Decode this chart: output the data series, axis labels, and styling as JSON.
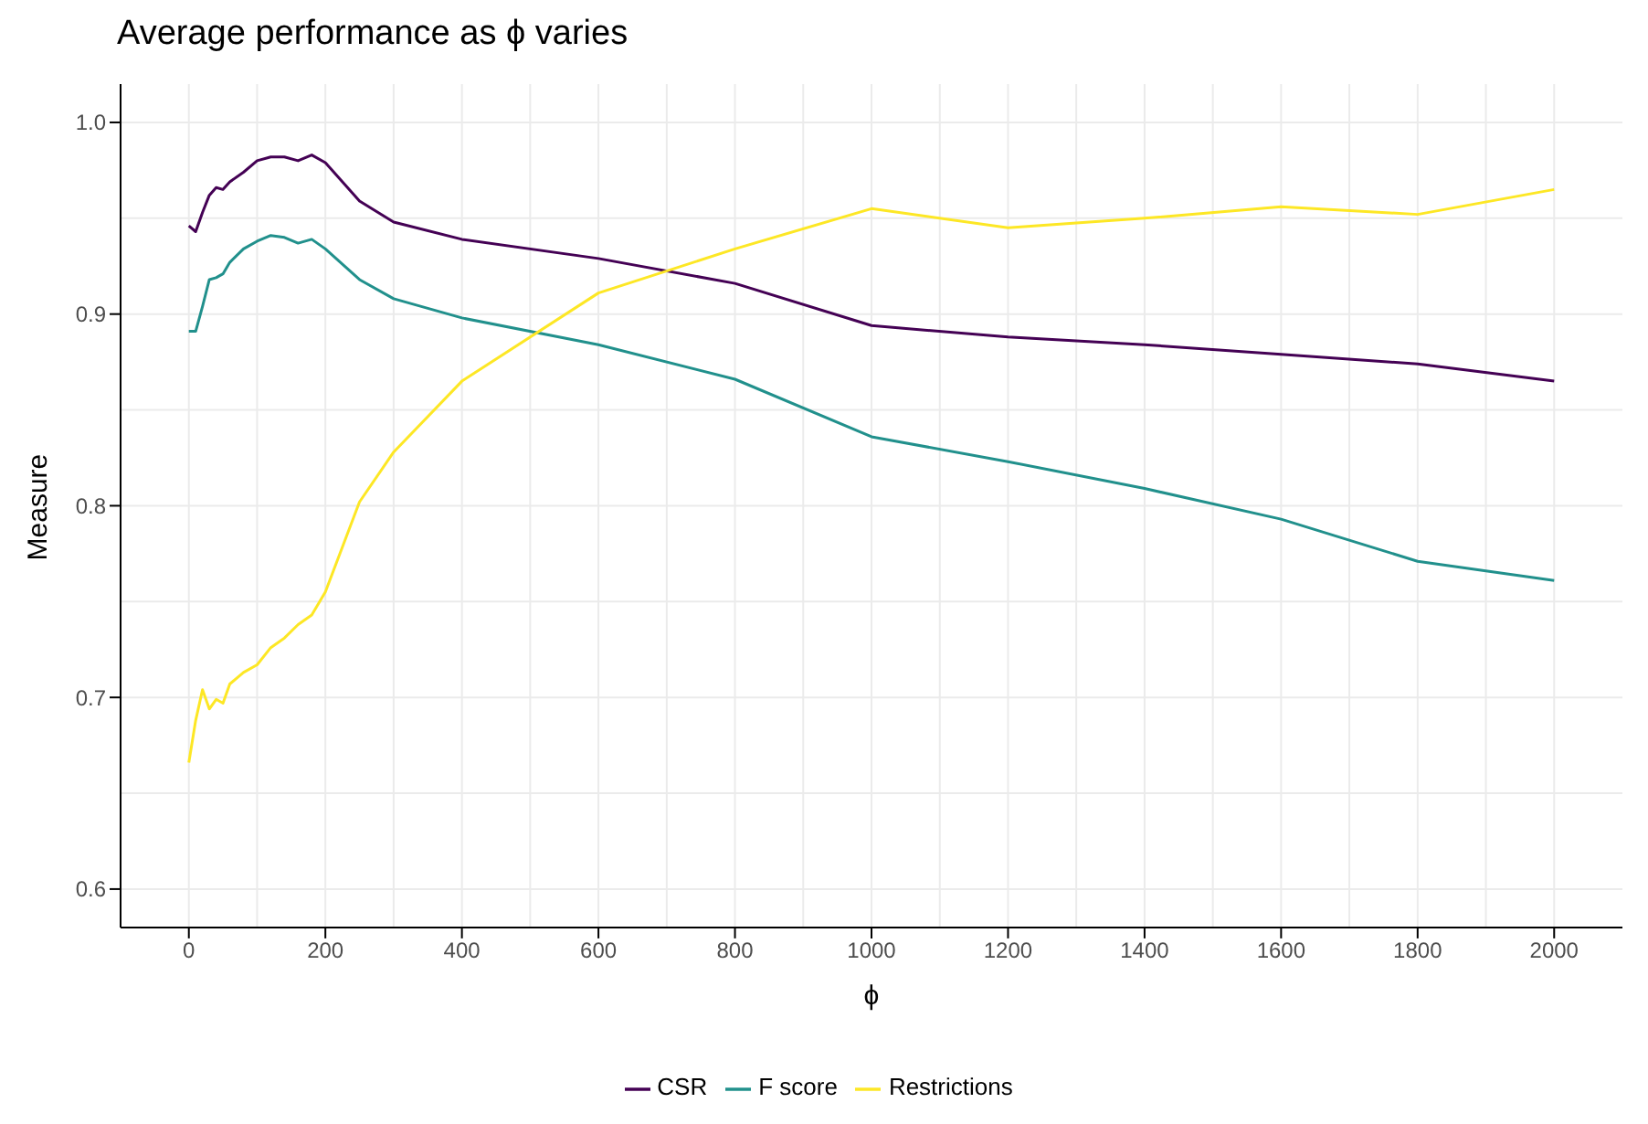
{
  "chart_data": {
    "type": "line",
    "title": "Average performance as ϕ varies",
    "xlabel": "ϕ",
    "ylabel": "Measure",
    "x": [
      0,
      10,
      20,
      30,
      40,
      50,
      60,
      80,
      100,
      120,
      140,
      160,
      180,
      200,
      250,
      300,
      400,
      600,
      800,
      1000,
      1200,
      1400,
      1600,
      1800,
      2000
    ],
    "series": [
      {
        "name": "CSR",
        "color": "#440154",
        "values": [
          0.946,
          0.943,
          0.953,
          0.962,
          0.966,
          0.965,
          0.969,
          0.974,
          0.98,
          0.982,
          0.982,
          0.98,
          0.983,
          0.979,
          0.959,
          0.948,
          0.939,
          0.929,
          0.916,
          0.894,
          0.888,
          0.884,
          0.879,
          0.874,
          0.865
        ]
      },
      {
        "name": "F score",
        "color": "#21908c",
        "values": [
          0.891,
          0.891,
          0.904,
          0.918,
          0.919,
          0.921,
          0.927,
          0.934,
          0.938,
          0.941,
          0.94,
          0.937,
          0.939,
          0.934,
          0.918,
          0.908,
          0.898,
          0.884,
          0.866,
          0.836,
          0.823,
          0.809,
          0.793,
          0.771,
          0.761
        ]
      },
      {
        "name": "Restrictions",
        "color": "#fde725",
        "values": [
          0.666,
          0.688,
          0.704,
          0.694,
          0.699,
          0.697,
          0.707,
          0.713,
          0.717,
          0.726,
          0.731,
          0.738,
          0.743,
          0.755,
          0.802,
          0.828,
          0.865,
          0.911,
          0.934,
          0.955,
          0.945,
          0.95,
          0.956,
          0.952,
          0.965
        ]
      }
    ],
    "xlim": [
      -100,
      2100
    ],
    "ylim": [
      0.58,
      1.02
    ],
    "xticks": [
      0,
      200,
      400,
      600,
      800,
      1000,
      1200,
      1400,
      1600,
      1800,
      2000
    ],
    "yticks": [
      0.6,
      0.7,
      0.8,
      0.9,
      {
        "value": 1,
        "label": "1.0"
      }
    ],
    "grid": true,
    "legend": "bottom",
    "marker": "none",
    "line_style": "solid"
  }
}
